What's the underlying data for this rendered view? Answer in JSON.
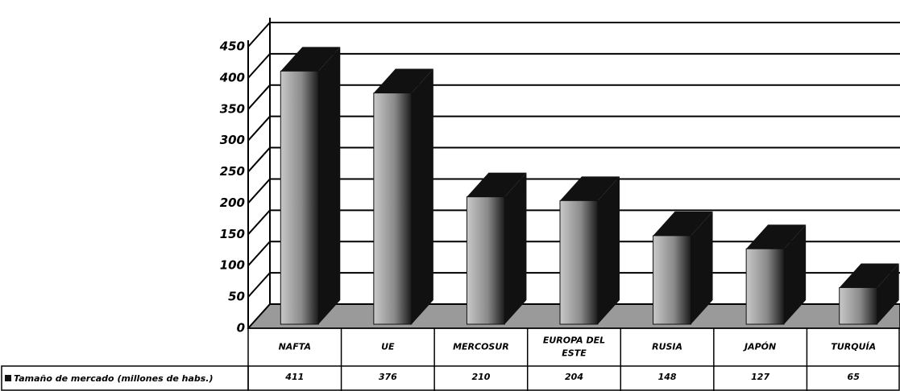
{
  "chart_data": {
    "type": "bar3d",
    "categories": [
      "NAFTA",
      "UE",
      "MERCOSUR",
      "EUROPA DEL ESTE",
      "RUSIA",
      "JAPÓN",
      "TURQUÍA"
    ],
    "series": [
      {
        "name": "Tamaño de mercado (millones de habs.)",
        "color": "#111111",
        "values": [
          411,
          376,
          210,
          204,
          148,
          127,
          65
        ]
      }
    ],
    "ylim": [
      0,
      450
    ],
    "yticks": [
      0,
      50,
      100,
      150,
      200,
      250,
      300,
      350,
      400,
      450
    ],
    "grid": true
  }
}
